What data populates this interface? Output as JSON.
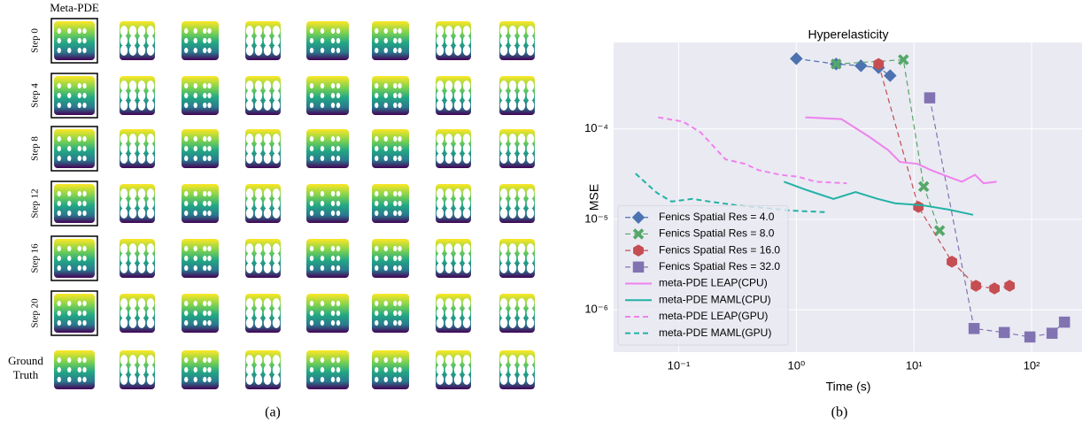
{
  "panel_a": {
    "column_header": "Meta-PDE",
    "row_labels": [
      "Step 0",
      "Step 4",
      "Step 8",
      "Step 12",
      "Step 16",
      "Step 20",
      "Ground Truth"
    ],
    "caption": "(a)"
  },
  "chart_data": {
    "type": "line",
    "title": "Hyperelasticity",
    "xlabel": "Time (s)",
    "ylabel": "MSE",
    "caption": "(b)",
    "xscale": "log",
    "yscale": "log",
    "xlim": [
      0.028,
      268
    ],
    "ylim": [
      3.4e-07,
      0.0009
    ],
    "xticks": [
      {
        "value": 0.1,
        "label": "10⁻¹"
      },
      {
        "value": 1,
        "label": "10⁰"
      },
      {
        "value": 10,
        "label": "10¹"
      },
      {
        "value": 100,
        "label": "10²"
      }
    ],
    "yticks": [
      {
        "value": 1e-06,
        "label": "10⁻⁶"
      },
      {
        "value": 1e-05,
        "label": "10⁻⁵"
      },
      {
        "value": 0.0001,
        "label": "10⁻⁴"
      }
    ],
    "grid": true,
    "legend": "lower left",
    "series": [
      {
        "name": "Fenics Spatial Res = 4.0",
        "color": "#4c72b0",
        "marker": "D",
        "linestyle": "--",
        "x": [
          1.0,
          2.18,
          3.54,
          5.0,
          6.27
        ],
        "values": [
          0.000596,
          0.00052,
          0.000497,
          0.000474,
          0.000387
        ]
      },
      {
        "name": "Fenics Spatial Res = 8.0",
        "color": "#55a868",
        "marker": "X",
        "linestyle": "--",
        "x": [
          2.18,
          8.13,
          12.1,
          16.5
        ],
        "values": [
          0.00052,
          0.00058,
          2.3e-05,
          7.5e-06
        ]
      },
      {
        "name": "Fenics Spatial Res = 16.0",
        "color": "#c44e52",
        "marker": "h",
        "linestyle": "--",
        "x": [
          5.0,
          10.9,
          21,
          33.6,
          48.3,
          64.9
        ],
        "values": [
          0.00052,
          1.37e-05,
          3.4e-06,
          1.84e-06,
          1.72e-06,
          1.84e-06
        ]
      },
      {
        "name": "Fenics Spatial Res = 32.0",
        "color": "#8172b2",
        "marker": "s",
        "linestyle": "--",
        "x": [
          13.6,
          32.4,
          58.5,
          96.6,
          149,
          190
        ],
        "values": [
          0.00022,
          6.2e-07,
          5.6e-07,
          5e-07,
          5.5e-07,
          7.3e-07
        ]
      },
      {
        "name": "meta-PDE LEAP(CPU)",
        "color": "#ee82ee",
        "linestyle": "-",
        "x": [
          1.19,
          2.42,
          4.14,
          6.05,
          7.6,
          10.7,
          13.9,
          19.6,
          25.5,
          33,
          39,
          50.5
        ],
        "values": [
          0.000134,
          0.000128,
          8.2e-05,
          5.8e-05,
          4.3e-05,
          4.1e-05,
          3.5e-05,
          2.95e-05,
          2.6e-05,
          3.1e-05,
          2.5e-05,
          2.6e-05
        ]
      },
      {
        "name": "meta-PDE MAML(CPU)",
        "color": "#21b2a6",
        "linestyle": "-",
        "x": [
          0.785,
          1.23,
          2.07,
          3.19,
          4.92,
          6.95,
          11.7,
          19.7,
          31.8
        ],
        "values": [
          2.6e-05,
          2.1e-05,
          1.68e-05,
          2e-05,
          1.68e-05,
          1.5e-05,
          1.43e-05,
          1.28e-05,
          1.12e-05
        ]
      },
      {
        "name": "meta-PDE LEAP(GPU)",
        "color": "#ee82ee",
        "linestyle": "--",
        "x": [
          0.067,
          0.109,
          0.154,
          0.25,
          0.366,
          0.475,
          0.732,
          1.04,
          1.46,
          2.68
        ],
        "values": [
          0.000134,
          0.00012,
          9.1e-05,
          4.6e-05,
          4.1e-05,
          3.5e-05,
          3.1e-05,
          2.95e-05,
          2.6e-05,
          2.5e-05
        ]
      },
      {
        "name": "meta-PDE MAML(GPU)",
        "color": "#21b2a6",
        "linestyle": "--",
        "x": [
          0.043,
          0.065,
          0.087,
          0.13,
          0.183,
          0.31,
          0.52,
          0.87,
          1.74
        ],
        "values": [
          3.2e-05,
          1.97e-05,
          1.57e-05,
          1.68e-05,
          1.57e-05,
          1.43e-05,
          1.34e-05,
          1.25e-05,
          1.2e-05
        ]
      }
    ]
  }
}
